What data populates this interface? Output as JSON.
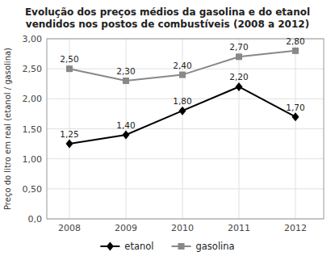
{
  "chart_data": {
    "type": "line",
    "title": "Evolução dos preços médios da gasolina e do etanol\nvendidos nos postos de combustíveis (2008 a 2012)",
    "y_label": "Preço do litro em real (etanol / gasolina)",
    "x": [
      2008,
      2009,
      2010,
      2011,
      2012
    ],
    "series": [
      {
        "name": "etanol",
        "color": "#000000",
        "marker": "diamond",
        "values": [
          1.25,
          1.4,
          1.8,
          2.2,
          1.7
        ],
        "value_labels": [
          "1,25",
          "1,40",
          "1,80",
          "2,20",
          "1,70"
        ]
      },
      {
        "name": "gasolina",
        "color": "#888888",
        "marker": "square",
        "values": [
          2.5,
          2.3,
          2.4,
          2.7,
          2.8
        ],
        "value_labels": [
          "2,50",
          "2,30",
          "2,40",
          "2,70",
          "2,80"
        ]
      }
    ],
    "xlim": [
      2007.6,
      2012.5
    ],
    "xticks": [
      2008,
      2009,
      2010,
      2011,
      2012
    ],
    "ylim": [
      0.0,
      3.0
    ],
    "yticks": [
      {
        "value": 0.0,
        "label": "0,0"
      },
      {
        "value": 0.5,
        "label": "0,50"
      },
      {
        "value": 1.0,
        "label": "1,00"
      },
      {
        "value": 1.5,
        "label": "1,50"
      },
      {
        "value": 2.0,
        "label": "2,00"
      },
      {
        "value": 2.5,
        "label": "2,50"
      },
      {
        "value": 3.0,
        "label": "3,00"
      }
    ],
    "grid": true,
    "legend": "bottom",
    "data_labels": true
  }
}
